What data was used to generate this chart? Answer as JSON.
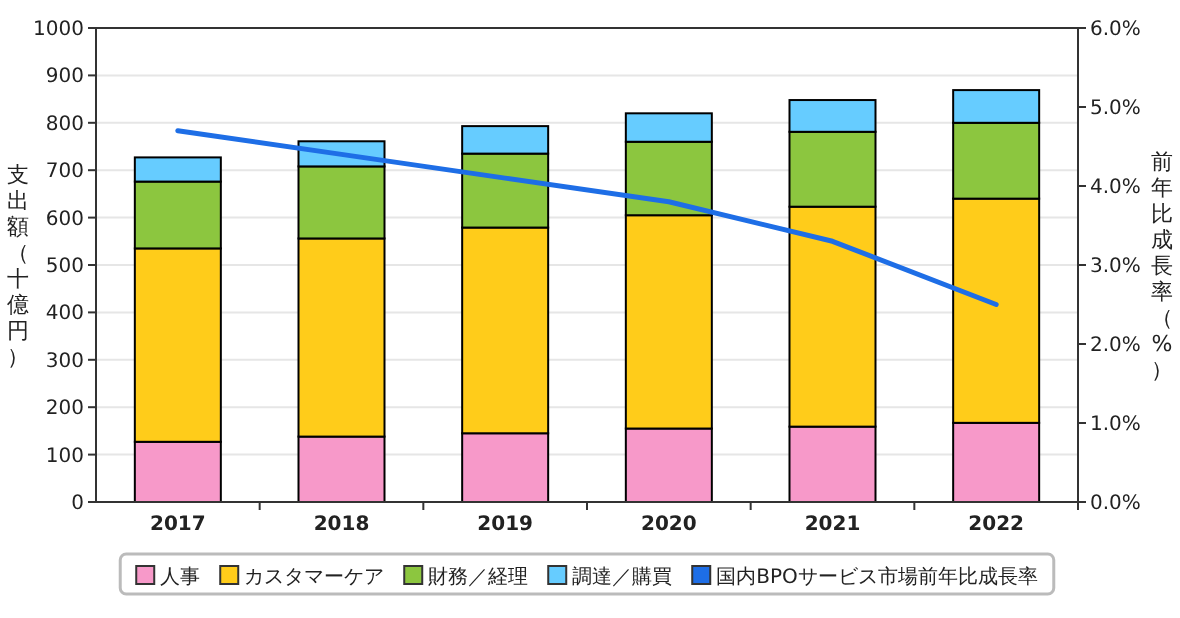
{
  "chart_data": {
    "type": "bar",
    "stacked": true,
    "grid": "y",
    "legend": "bottom",
    "ylabel": "支出額（十億円）",
    "y2label": "前年比成長率（%）",
    "categories": [
      "2017",
      "2018",
      "2019",
      "2020",
      "2021",
      "2022"
    ],
    "series": [
      {
        "name": "人事",
        "color": "#f799c9",
        "values": [
          127,
          138,
          145,
          155,
          159,
          167
        ]
      },
      {
        "name": "カスタマーケア",
        "color": "#ffcc1a",
        "values": [
          408,
          418,
          434,
          450,
          464,
          473
        ]
      },
      {
        "name": "財務／経理",
        "color": "#8cc63f",
        "values": [
          141,
          152,
          156,
          155,
          158,
          160
        ]
      },
      {
        "name": "調達／購買",
        "color": "#66ccff",
        "values": [
          51,
          53,
          58,
          60,
          67,
          69
        ]
      },
      {
        "name": "国内BPOサービス市場前年比成長率",
        "type": "line",
        "axis": "y2",
        "color": "#1e6ee6",
        "values": [
          4.7,
          4.4,
          4.1,
          3.8,
          3.3,
          2.5
        ]
      }
    ],
    "ylim": [
      0,
      1000
    ],
    "yticks": [
      0,
      100,
      200,
      300,
      400,
      500,
      600,
      700,
      800,
      900,
      1000
    ],
    "y2lim": [
      0,
      6
    ],
    "y2ticks": [
      {
        "value": 0,
        "label": "0.0%"
      },
      {
        "value": 1,
        "label": "1.0%"
      },
      {
        "value": 2,
        "label": "2.0%"
      },
      {
        "value": 3,
        "label": "3.0%"
      },
      {
        "value": 4,
        "label": "4.0%"
      },
      {
        "value": 5,
        "label": "5.0%"
      },
      {
        "value": 6,
        "label": "6.0%"
      }
    ]
  }
}
